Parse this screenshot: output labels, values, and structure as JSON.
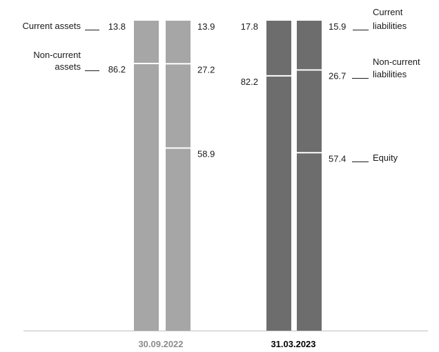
{
  "chart_data": {
    "type": "bar",
    "stacked": true,
    "percent_scale": true,
    "groups": [
      {
        "date": "30.09.2022",
        "date_color": "#8c8c8c",
        "bar_color": "#a6a6a6",
        "columns": [
          {
            "side": "assets",
            "segments": [
              {
                "name": "Current assets",
                "value": 13.8,
                "value_label": "13.8"
              },
              {
                "name": "Non-current assets",
                "value": 86.2,
                "value_label": "86.2"
              }
            ]
          },
          {
            "side": "liabilities",
            "segments": [
              {
                "name": "Current liabilities",
                "value": 13.9,
                "value_label": "13.9"
              },
              {
                "name": "Non-current liabilities",
                "value": 27.2,
                "value_label": "27.2"
              },
              {
                "name": "Equity",
                "value": 58.9,
                "value_label": "58.9"
              }
            ]
          }
        ]
      },
      {
        "date": "31.03.2023",
        "date_color": "#000000",
        "bar_color": "#6d6d6d",
        "columns": [
          {
            "side": "assets",
            "segments": [
              {
                "name": "Current assets",
                "value": 17.8,
                "value_label": "17.8"
              },
              {
                "name": "Non-current assets",
                "value": 82.2,
                "value_label": "82.2"
              }
            ]
          },
          {
            "side": "liabilities",
            "segments": [
              {
                "name": "Current liabilities",
                "value": 15.9,
                "value_label": "15.9"
              },
              {
                "name": "Non-current liabilities",
                "value": 26.7,
                "value_label": "26.7"
              },
              {
                "name": "Equity",
                "value": 57.4,
                "value_label": "57.4"
              }
            ]
          }
        ]
      }
    ],
    "left_labels": {
      "current_assets": "Current assets",
      "non_current_assets_line1": "Non-current",
      "non_current_assets_line2": "assets"
    },
    "right_labels": {
      "current_liabilities_line1": "Current",
      "current_liabilities_line2": "liabilities",
      "non_current_liabilities_line1": "Non-current",
      "non_current_liabilities_line2": "liabilities",
      "equity": "Equity"
    },
    "colors": {
      "axis": "#bfbfbf",
      "separator": "#ffffff",
      "leader": "#1a1a1a"
    },
    "grid": false,
    "legend": "none"
  }
}
